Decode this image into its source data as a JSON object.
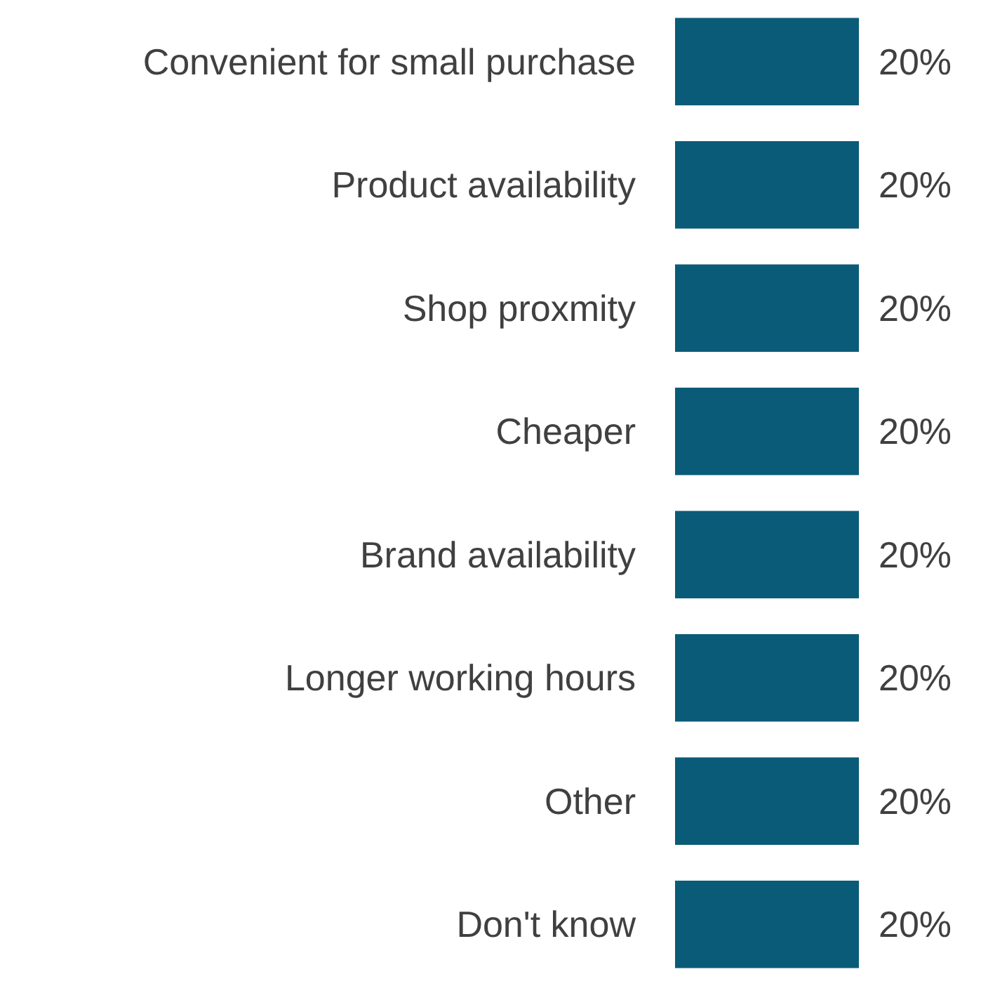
{
  "chart_data": {
    "type": "bar",
    "orientation": "horizontal",
    "categories": [
      "Convenient for small purchase",
      "Product availability",
      "Shop proxmity",
      "Cheaper",
      "Brand availability",
      "Longer working hours",
      "Other",
      "Don't know"
    ],
    "values": [
      20,
      20,
      20,
      20,
      20,
      20,
      20,
      20
    ],
    "value_labels": [
      "20%",
      "20%",
      "20%",
      "20%",
      "20%",
      "20%",
      "20%",
      "20%"
    ],
    "color": "#0a5b78"
  }
}
